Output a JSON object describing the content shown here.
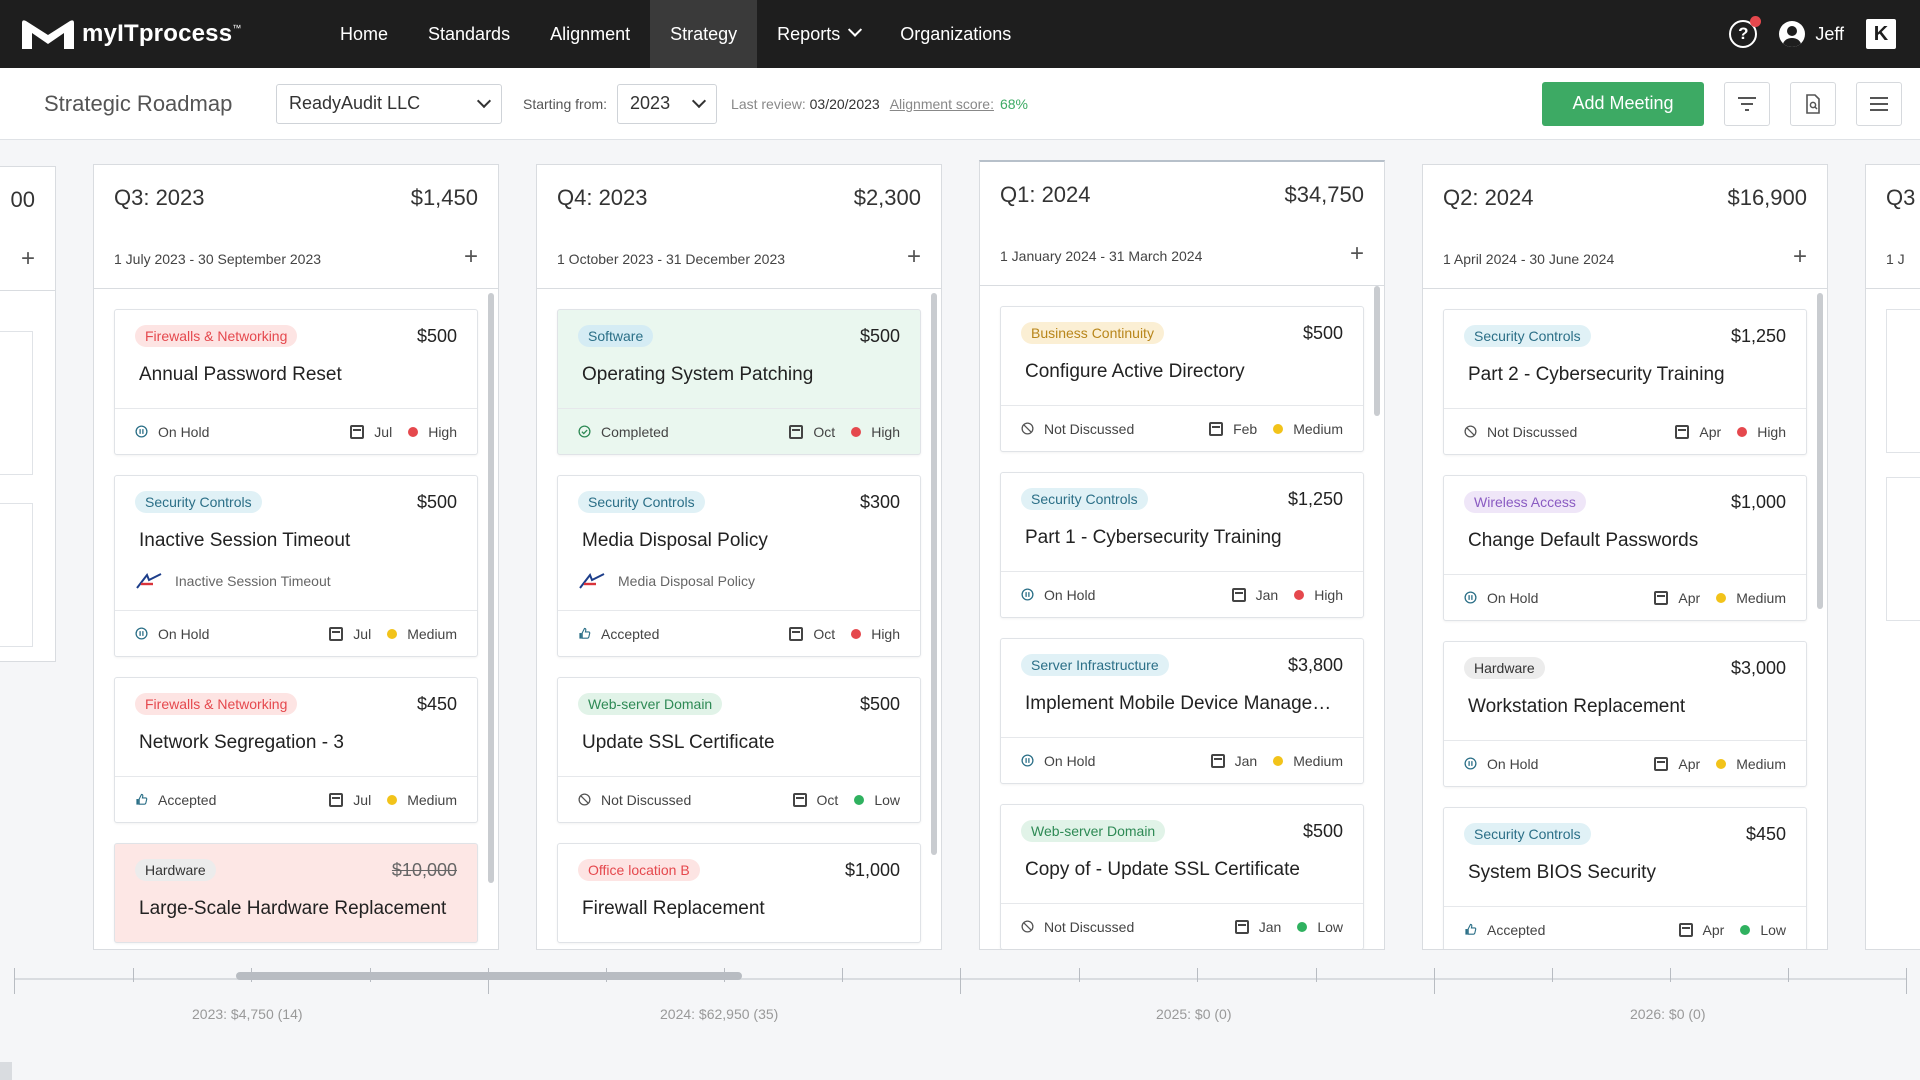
{
  "app": {
    "brand": "myITprocess"
  },
  "nav": {
    "items": [
      {
        "label": "Home"
      },
      {
        "label": "Standards"
      },
      {
        "label": "Alignment"
      },
      {
        "label": "Strategy"
      },
      {
        "label": "Reports"
      },
      {
        "label": "Organizations"
      }
    ],
    "active": "Strategy",
    "user": "Jeff"
  },
  "toolbar": {
    "title": "Strategic Roadmap",
    "organization": "ReadyAudit LLC",
    "starting_label": "Starting from:",
    "year": "2023",
    "last_review_label": "Last review:",
    "last_review": "03/20/2023",
    "alignment_label": "Alignment score:",
    "alignment_score": "68%",
    "add_meeting": "Add Meeting"
  },
  "columns": [
    {
      "quarter": "Q3: 2023",
      "total": "$1,450",
      "range": "1 July 2023 - 30 September 2023",
      "cards": [
        {
          "tag": "Firewalls & Networking",
          "tag_color": "#e5484d",
          "tag_bg": "#fde4e3",
          "amount": "$500",
          "title": "Annual Password Reset",
          "status": "On Hold",
          "status_icon": "pause",
          "month": "Jul",
          "priority": "High",
          "priority_color": "#e5484d"
        },
        {
          "tag": "Security Controls",
          "tag_color": "#2b6f87",
          "tag_bg": "#e0f1f6",
          "amount": "$500",
          "title": "Inactive Session Timeout",
          "sub": "Inactive Session Timeout",
          "status": "On Hold",
          "status_icon": "pause",
          "month": "Jul",
          "priority": "Medium",
          "priority_color": "#f2c31a"
        },
        {
          "tag": "Firewalls & Networking",
          "tag_color": "#e5484d",
          "tag_bg": "#fde4e3",
          "amount": "$450",
          "title": "Network Segregation - 3",
          "status": "Accepted",
          "status_icon": "thumb",
          "month": "Jul",
          "priority": "Medium",
          "priority_color": "#f2c31a"
        },
        {
          "tag": "Hardware",
          "tag_color": "#333",
          "tag_bg": "#ececec",
          "amount": "$10,000",
          "amount_strike": true,
          "title": "Large-Scale Hardware Replacement",
          "variant": "red"
        }
      ]
    },
    {
      "quarter": "Q4: 2023",
      "total": "$2,300",
      "range": "1 October 2023 - 31 December 2023",
      "cards": [
        {
          "tag": "Software",
          "tag_color": "#2b6f87",
          "tag_bg": "#d5ecf4",
          "amount": "$500",
          "title": "Operating System Patching",
          "status": "Completed",
          "status_icon": "check",
          "month": "Oct",
          "priority": "High",
          "priority_color": "#e5484d",
          "variant": "green"
        },
        {
          "tag": "Security Controls",
          "tag_color": "#2b6f87",
          "tag_bg": "#e0f1f6",
          "amount": "$300",
          "title": "Media Disposal Policy",
          "sub": "Media Disposal Policy",
          "status": "Accepted",
          "status_icon": "thumb",
          "month": "Oct",
          "priority": "High",
          "priority_color": "#e5484d"
        },
        {
          "tag": "Web-server Domain",
          "tag_color": "#2e8a55",
          "tag_bg": "#e1f3e8",
          "amount": "$500",
          "title": "Update SSL Certificate",
          "status": "Not Discussed",
          "status_icon": "ban",
          "month": "Oct",
          "priority": "Low",
          "priority_color": "#2fb15f"
        },
        {
          "tag": "Office location B",
          "tag_color": "#e5484d",
          "tag_bg": "#fde4e3",
          "amount": "$1,000",
          "title": "Firewall Replacement"
        }
      ]
    },
    {
      "quarter": "Q1: 2024",
      "total": "$34,750",
      "range": "1 January 2024 - 31 March 2024",
      "cards": [
        {
          "tag": "Business Continuity",
          "tag_color": "#b8861b",
          "tag_bg": "#fbefd4",
          "amount": "$500",
          "title": "Configure Active Directory",
          "status": "Not Discussed",
          "status_icon": "ban",
          "month": "Feb",
          "priority": "Medium",
          "priority_color": "#f2c31a"
        },
        {
          "tag": "Security Controls",
          "tag_color": "#2b6f87",
          "tag_bg": "#e0f1f6",
          "amount": "$1,250",
          "title": "Part 1 - Cybersecurity Training",
          "status": "On Hold",
          "status_icon": "pause",
          "month": "Jan",
          "priority": "High",
          "priority_color": "#e5484d"
        },
        {
          "tag": "Server Infrastructure",
          "tag_color": "#2b6f87",
          "tag_bg": "#e0f1f6",
          "amount": "$3,800",
          "title": "Implement Mobile Device Management",
          "status": "On Hold",
          "status_icon": "pause",
          "month": "Jan",
          "priority": "Medium",
          "priority_color": "#f2c31a"
        },
        {
          "tag": "Web-server Domain",
          "tag_color": "#2e8a55",
          "tag_bg": "#e1f3e8",
          "amount": "$500",
          "title": "Copy of - Update SSL Certificate",
          "status": "Not Discussed",
          "status_icon": "ban",
          "month": "Jan",
          "priority": "Low",
          "priority_color": "#2fb15f"
        }
      ]
    },
    {
      "quarter": "Q2: 2024",
      "total": "$16,900",
      "range": "1 April 2024 - 30 June 2024",
      "cards": [
        {
          "tag": "Security Controls",
          "tag_color": "#2b6f87",
          "tag_bg": "#e0f1f6",
          "amount": "$1,250",
          "title": "Part 2 - Cybersecurity Training",
          "status": "Not Discussed",
          "status_icon": "ban",
          "month": "Apr",
          "priority": "High",
          "priority_color": "#e5484d"
        },
        {
          "tag": "Wireless Access",
          "tag_color": "#8a5bc2",
          "tag_bg": "#efe6f8",
          "amount": "$1,000",
          "title": "Change Default Passwords",
          "status": "On Hold",
          "status_icon": "pause",
          "month": "Apr",
          "priority": "Medium",
          "priority_color": "#f2c31a"
        },
        {
          "tag": "Hardware",
          "tag_color": "#333",
          "tag_bg": "#ececec",
          "amount": "$3,000",
          "title": "Workstation Replacement",
          "status": "On Hold",
          "status_icon": "pause",
          "month": "Apr",
          "priority": "Medium",
          "priority_color": "#f2c31a"
        },
        {
          "tag": "Security Controls",
          "tag_color": "#2b6f87",
          "tag_bg": "#e0f1f6",
          "amount": "$450",
          "title": "System BIOS Security",
          "status": "Accepted",
          "status_icon": "thumb",
          "month": "Apr",
          "priority": "Low",
          "priority_color": "#2fb15f"
        }
      ]
    }
  ],
  "partial_left": {
    "total": "00"
  },
  "partial_right": {
    "quarter": "Q3",
    "range": "1 J"
  },
  "timeline": {
    "labels": [
      "2023: $4,750 (14)",
      "2024: $62,950 (35)",
      "2025: $0 (0)",
      "2026: $0 (0)"
    ]
  }
}
